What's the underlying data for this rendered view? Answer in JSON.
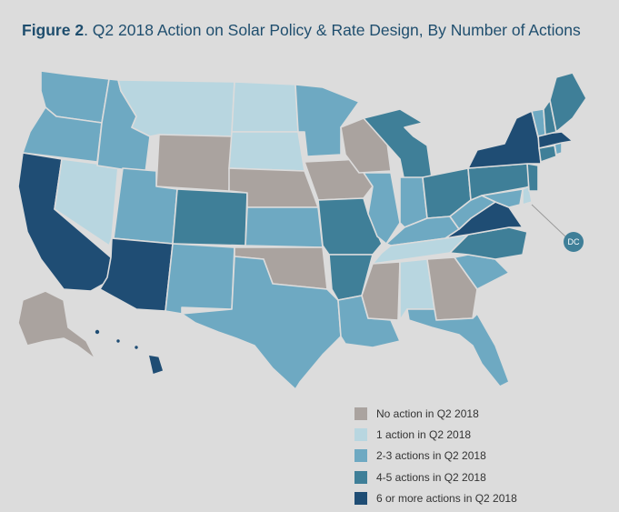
{
  "title": {
    "prefix": "Figure 2",
    "text": ". Q2 2018 Action on Solar Policy & Rate Design, By Number of Actions"
  },
  "colors": {
    "background": "#dcdcdc",
    "title": "#1f4e6e",
    "none": "#aaa39f",
    "one": "#b8d6e0",
    "two_three": "#6ea9c2",
    "four_five": "#3f7f98",
    "six_plus": "#1f4d74"
  },
  "legend": [
    {
      "key": "none",
      "label": "No action in Q2 2018"
    },
    {
      "key": "one",
      "label": "1 action in Q2 2018"
    },
    {
      "key": "two_three",
      "label": "2-3 actions in Q2 2018"
    },
    {
      "key": "four_five",
      "label": "4-5 actions in Q2 2018"
    },
    {
      "key": "six_plus",
      "label": "6 or more actions in Q2 2018"
    }
  ],
  "dc_label": "DC",
  "states": {
    "WA": "two_three",
    "OR": "two_three",
    "CA": "six_plus",
    "NV": "one",
    "ID": "two_three",
    "MT": "one",
    "WY": "none",
    "UT": "two_three",
    "AZ": "six_plus",
    "CO": "four_five",
    "NM": "two_three",
    "ND": "one",
    "SD": "one",
    "NE": "none",
    "KS": "two_three",
    "OK": "none",
    "TX": "two_three",
    "MN": "two_three",
    "IA": "none",
    "MO": "four_five",
    "AR": "four_five",
    "LA": "two_three",
    "WI": "none",
    "IL": "two_three",
    "MI": "four_five",
    "IN": "two_three",
    "OH": "four_five",
    "KY": "two_three",
    "TN": "one",
    "MS": "none",
    "AL": "one",
    "GA": "none",
    "FL": "two_three",
    "SC": "two_three",
    "NC": "four_five",
    "VA": "six_plus",
    "WV": "two_three",
    "PA": "four_five",
    "NY": "six_plus",
    "VT": "two_three",
    "NH": "four_five",
    "ME": "four_five",
    "MA": "six_plus",
    "RI": "two_three",
    "CT": "four_five",
    "NJ": "four_five",
    "DE": "one",
    "MD": "two_three",
    "AK": "none",
    "HI": "six_plus",
    "DC": "four_five"
  }
}
